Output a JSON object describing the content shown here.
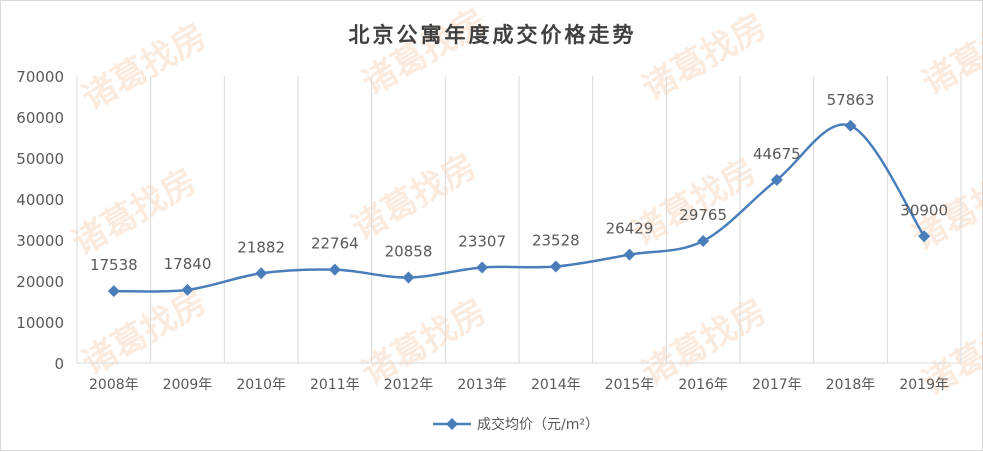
{
  "chart_data": {
    "type": "line",
    "title": "北京公寓年度成交价格走势",
    "categories": [
      "2008年",
      "2009年",
      "2010年",
      "2011年",
      "2012年",
      "2013年",
      "2014年",
      "2015年",
      "2016年",
      "2017年",
      "2018年",
      "2019年"
    ],
    "series": [
      {
        "name": "成交均价（元/m²）",
        "values": [
          17538,
          17840,
          21882,
          22764,
          20858,
          23307,
          23528,
          26429,
          29765,
          44675,
          57863,
          30900
        ],
        "color": "#4a7ebb",
        "marker": "diamond",
        "smooth": true
      }
    ],
    "ylim": [
      0,
      70000
    ],
    "yticks": [
      0,
      10000,
      20000,
      30000,
      40000,
      50000,
      60000,
      70000
    ],
    "xlabel": "",
    "ylabel": "",
    "grid": "vertical",
    "legend": "bottom",
    "data_labels": true
  },
  "watermark": "诸葛找房"
}
